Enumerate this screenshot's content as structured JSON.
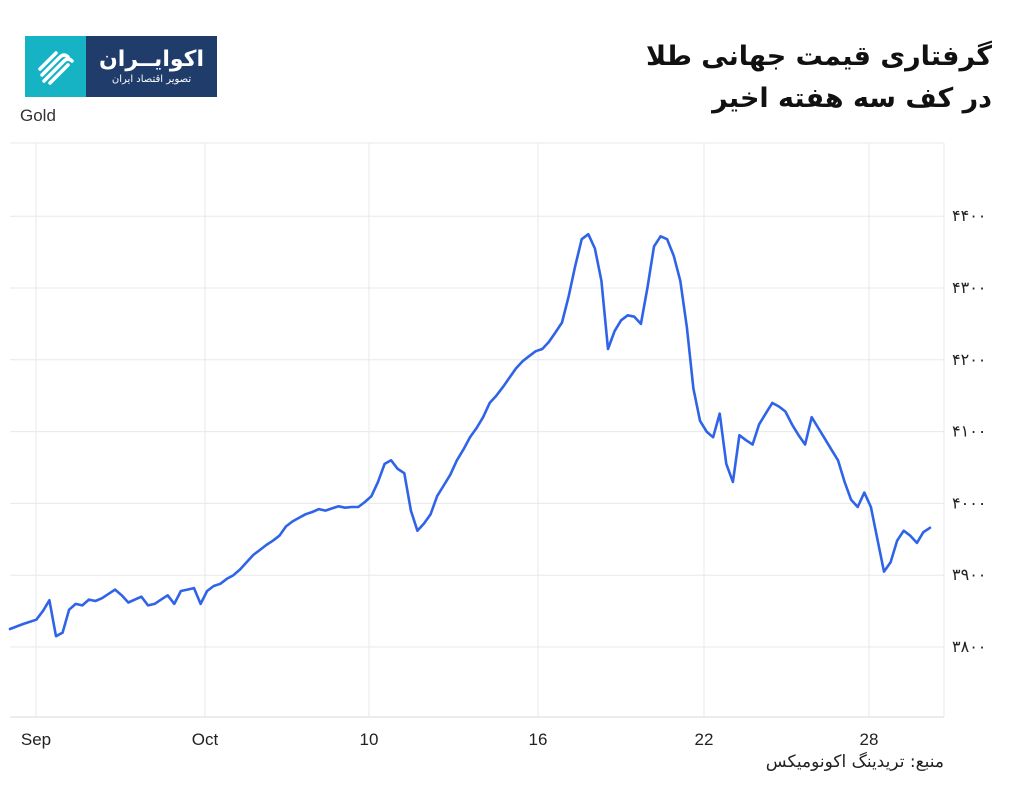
{
  "header": {
    "title_line1": "گرفتاری قیمت جهانی طلا",
    "title_line2": "در کف سه هفته اخیر"
  },
  "logo": {
    "name": "اکوایــران",
    "tagline": "تصویر اقتصاد ایران",
    "colors": {
      "background": "#1f3c6a",
      "icon": "#16b3c4"
    }
  },
  "footer": {
    "source": "منبع: تریدینگ اکونومیکس"
  },
  "chart_data": {
    "type": "line",
    "series": [
      {
        "name": "Gold",
        "color": "#2f63e8",
        "points": [
          [
            0,
            3825
          ],
          [
            2,
            3832
          ],
          [
            4,
            3838
          ],
          [
            5,
            3850
          ],
          [
            6,
            3865
          ],
          [
            7,
            3815
          ],
          [
            8,
            3820
          ],
          [
            9,
            3852
          ],
          [
            10,
            3860
          ],
          [
            11,
            3858
          ],
          [
            12,
            3866
          ],
          [
            13,
            3864
          ],
          [
            14,
            3868
          ],
          [
            16,
            3880
          ],
          [
            17,
            3872
          ],
          [
            18,
            3862
          ],
          [
            20,
            3870
          ],
          [
            21,
            3858
          ],
          [
            22,
            3860
          ],
          [
            23,
            3866
          ],
          [
            24,
            3872
          ],
          [
            25,
            3860
          ],
          [
            26,
            3878
          ],
          [
            27,
            3880
          ],
          [
            28,
            3882
          ],
          [
            29,
            3860
          ],
          [
            30,
            3878
          ],
          [
            31,
            3885
          ],
          [
            32,
            3888
          ],
          [
            33,
            3895
          ],
          [
            34,
            3900
          ],
          [
            35,
            3908
          ],
          [
            36,
            3918
          ],
          [
            37,
            3928
          ],
          [
            38,
            3935
          ],
          [
            39,
            3942
          ],
          [
            40,
            3948
          ],
          [
            41,
            3955
          ],
          [
            42,
            3968
          ],
          [
            43,
            3975
          ],
          [
            44,
            3980
          ],
          [
            45,
            3985
          ],
          [
            46,
            3988
          ],
          [
            47,
            3992
          ],
          [
            48,
            3990
          ],
          [
            49,
            3993
          ],
          [
            50,
            3996
          ],
          [
            51,
            3994
          ],
          [
            52,
            3995
          ],
          [
            53,
            3995
          ],
          [
            54,
            4002
          ],
          [
            55,
            4010
          ],
          [
            56,
            4030
          ],
          [
            57,
            4055
          ],
          [
            58,
            4060
          ],
          [
            59,
            4048
          ],
          [
            60,
            4042
          ],
          [
            61,
            3990
          ],
          [
            62,
            3962
          ],
          [
            63,
            3972
          ],
          [
            64,
            3985
          ],
          [
            65,
            4010
          ],
          [
            66,
            4025
          ],
          [
            67,
            4040
          ],
          [
            68,
            4060
          ],
          [
            69,
            4075
          ],
          [
            70,
            4092
          ],
          [
            71,
            4105
          ],
          [
            72,
            4120
          ],
          [
            73,
            4140
          ],
          [
            74,
            4150
          ],
          [
            75,
            4162
          ],
          [
            76,
            4175
          ],
          [
            77,
            4188
          ],
          [
            78,
            4198
          ],
          [
            79,
            4205
          ],
          [
            80,
            4212
          ],
          [
            81,
            4215
          ],
          [
            82,
            4225
          ],
          [
            83,
            4238
          ],
          [
            84,
            4252
          ],
          [
            85,
            4288
          ],
          [
            86,
            4330
          ],
          [
            87,
            4368
          ],
          [
            88,
            4375
          ],
          [
            89,
            4355
          ],
          [
            90,
            4310
          ],
          [
            91,
            4215
          ],
          [
            92,
            4240
          ],
          [
            93,
            4255
          ],
          [
            94,
            4262
          ],
          [
            95,
            4260
          ],
          [
            96,
            4250
          ],
          [
            97,
            4300
          ],
          [
            98,
            4358
          ],
          [
            99,
            4372
          ],
          [
            100,
            4368
          ],
          [
            101,
            4345
          ],
          [
            102,
            4310
          ],
          [
            103,
            4245
          ],
          [
            104,
            4160
          ],
          [
            105,
            4115
          ],
          [
            106,
            4100
          ],
          [
            107,
            4092
          ],
          [
            108,
            4125
          ],
          [
            109,
            4055
          ],
          [
            110,
            4030
          ],
          [
            111,
            4095
          ],
          [
            112,
            4088
          ],
          [
            113,
            4082
          ],
          [
            114,
            4110
          ],
          [
            115,
            4125
          ],
          [
            116,
            4140
          ],
          [
            117,
            4135
          ],
          [
            118,
            4128
          ],
          [
            119,
            4110
          ],
          [
            120,
            4095
          ],
          [
            121,
            4082
          ],
          [
            122,
            4120
          ],
          [
            123,
            4105
          ],
          [
            124,
            4090
          ],
          [
            125,
            4075
          ],
          [
            126,
            4060
          ],
          [
            127,
            4030
          ],
          [
            128,
            4005
          ],
          [
            129,
            3995
          ],
          [
            130,
            4015
          ],
          [
            131,
            3995
          ],
          [
            132,
            3950
          ],
          [
            133,
            3905
          ],
          [
            134,
            3918
          ],
          [
            135,
            3948
          ],
          [
            136,
            3962
          ],
          [
            137,
            3955
          ],
          [
            138,
            3945
          ],
          [
            139,
            3960
          ],
          [
            140,
            3966
          ]
        ]
      }
    ],
    "x_tick_labels": [
      "Sep",
      "Oct",
      "10",
      "16",
      "22",
      "28"
    ],
    "x_tick_positions": [
      0,
      20,
      40,
      60,
      80,
      100
    ],
    "y_ticks": [
      3800,
      3900,
      4000,
      4100,
      4200,
      4300,
      4400
    ],
    "y_tick_labels": [
      "۳۸۰۰",
      "۳۹۰۰",
      "۴۰۰۰",
      "۴۱۰۰",
      "۴۲۰۰",
      "۴۳۰۰",
      "۴۴۰۰"
    ],
    "y_axis_position": "right",
    "grid": true
  }
}
